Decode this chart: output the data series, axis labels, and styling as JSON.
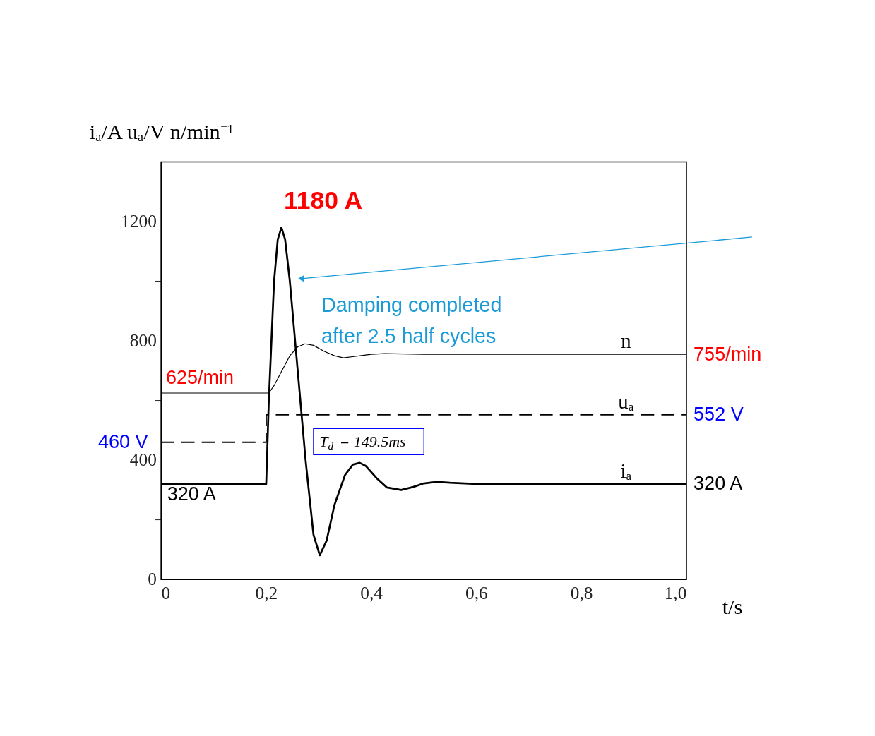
{
  "chart_data": {
    "type": "line",
    "xlabel": "t/s",
    "ylabel": "iₐ/A   uₐ/V   n/min⁻¹",
    "xlim": [
      0,
      1.0
    ],
    "ylim": [
      0,
      1400
    ],
    "xticks": [
      0,
      {
        "value": 0.2,
        "label": "0,2"
      },
      {
        "value": 0.4,
        "label": "0,4"
      },
      {
        "value": 0.6,
        "label": "0,6"
      },
      {
        "value": 0.8,
        "label": "0,8"
      },
      {
        "value": 1.0,
        "label": "1,0"
      }
    ],
    "yticks": [
      0,
      {
        "value": 200,
        "label": null
      },
      400,
      {
        "value": 600,
        "label": null
      },
      800,
      {
        "value": 1000,
        "label": null
      },
      1200
    ],
    "grid": false,
    "legend": false,
    "marker": "none",
    "series": [
      {
        "name": "n",
        "color": "#000000",
        "line_style": "solid",
        "x": [
          0,
          0.205,
          0.215,
          0.23,
          0.245,
          0.26,
          0.274,
          0.29,
          0.31,
          0.33,
          0.347,
          0.37,
          0.4,
          0.425,
          0.5,
          1.0
        ],
        "values": [
          625,
          625,
          650,
          700,
          750,
          780,
          790,
          785,
          765,
          750,
          743,
          748,
          755,
          757,
          755,
          755
        ]
      },
      {
        "name": "uₐ",
        "color": "#000000",
        "line_style": "dashed",
        "x": [
          0,
          0.2,
          0.2,
          1.0
        ],
        "values": [
          460,
          460,
          552,
          552
        ]
      },
      {
        "name": "iₐ",
        "color": "#000000",
        "line_style": "solid",
        "x": [
          0,
          0.2,
          0.205,
          0.215,
          0.222,
          0.229,
          0.236,
          0.245,
          0.26,
          0.275,
          0.29,
          0.302,
          0.315,
          0.33,
          0.35,
          0.365,
          0.378,
          0.39,
          0.41,
          0.43,
          0.457,
          0.48,
          0.5,
          0.525,
          0.55,
          0.6,
          1.0
        ],
        "values": [
          320,
          320,
          600,
          1000,
          1140,
          1180,
          1140,
          1000,
          700,
          400,
          150,
          81,
          130,
          250,
          350,
          385,
          391,
          380,
          340,
          308,
          300,
          310,
          322,
          327,
          324,
          320,
          320
        ]
      }
    ],
    "annotations": [
      {
        "text": "1180 A",
        "x": 0.229,
        "y": 1180
      },
      {
        "text": "625/min",
        "x": 0,
        "y": 625
      },
      {
        "text": "460 V",
        "x": 0,
        "y": 460
      },
      {
        "text": "320 A",
        "x": 0,
        "y": 320
      },
      {
        "text": "755/min",
        "x": 1.0,
        "y": 755
      },
      {
        "text": "552 V",
        "x": 1.0,
        "y": 552
      },
      {
        "text": "320 A",
        "x": 1.0,
        "y": 320
      },
      "Damping completed\nafter 2.5 half cycles",
      "T$_{d}$ = 149.5ms"
    ]
  }
}
